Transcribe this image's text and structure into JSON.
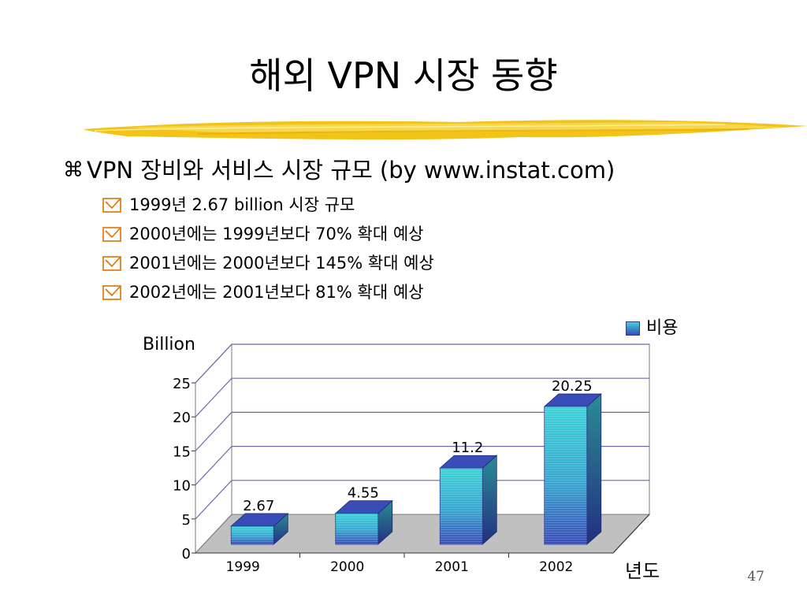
{
  "slide": {
    "title": "해외 VPN 시장 동향",
    "main_bullet": "VPN 장비와 서비스 시장 규모 (by www.instat.com)",
    "sub_bullets": [
      "1999년 2.67 billion 시장 규모",
      "2000년에는 1999년보다 70% 확대 예상",
      "2001년에는 2000년보다 145% 확대 예상",
      "2002년에는 2001년보다 81% 확대 예상"
    ],
    "page_number": "47"
  },
  "colors": {
    "bar_top": "#3cd2d8",
    "bar_bottom": "#3a4cb8",
    "gridline": "#6a6aa8",
    "floor": "#c0c0c0",
    "brush": "#f2c417"
  },
  "chart_data": {
    "type": "bar",
    "categories": [
      "1999",
      "2000",
      "2001",
      "2002"
    ],
    "series": [
      {
        "name": "비용",
        "values": [
          2.67,
          4.55,
          11.2,
          20.25
        ]
      }
    ],
    "data_labels": [
      "2.67",
      "4.55",
      "11.2",
      "20.25"
    ],
    "ylabel": "Billion",
    "xlabel": "년도",
    "ylim": [
      0,
      25
    ],
    "yticks": [
      "0",
      "5",
      "10",
      "15",
      "20",
      "25"
    ],
    "grid": true,
    "legend": "top-right",
    "style": "3d"
  }
}
